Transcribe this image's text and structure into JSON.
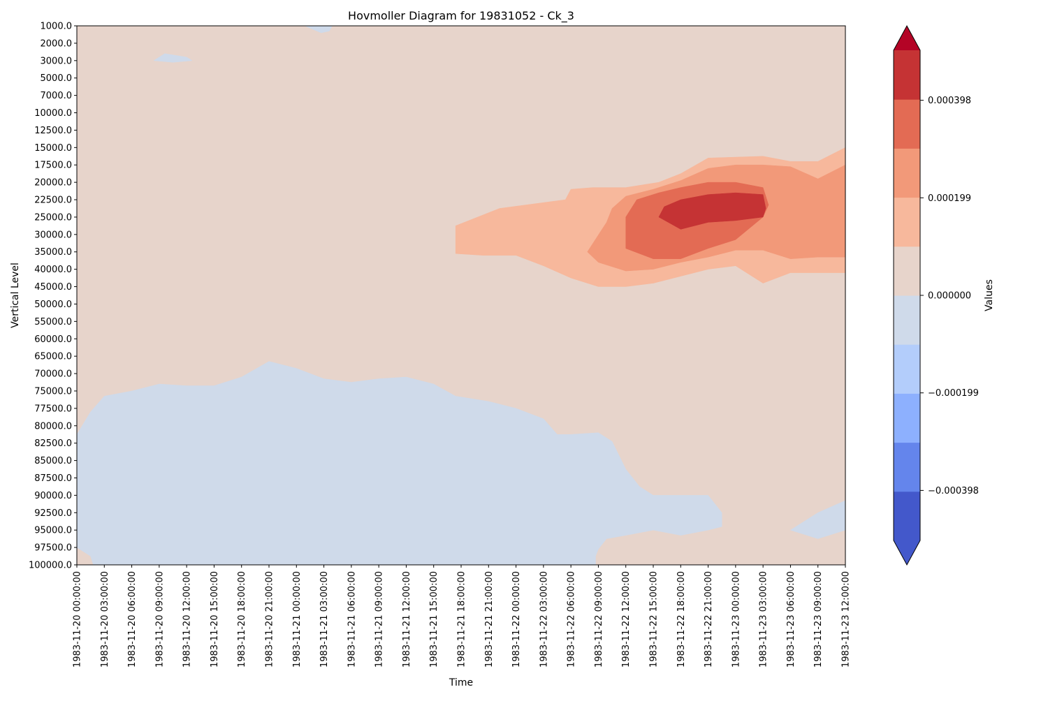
{
  "chart_data": {
    "type": "heatmap",
    "subtype": "filled-contour",
    "title": "Hovmoller Diagram for 19831052 - Ck_3",
    "xlabel": "Time",
    "ylabel": "Vertical Level",
    "x": [
      "1983-11-20 00:00:00",
      "1983-11-20 03:00:00",
      "1983-11-20 06:00:00",
      "1983-11-20 09:00:00",
      "1983-11-20 12:00:00",
      "1983-11-20 15:00:00",
      "1983-11-20 18:00:00",
      "1983-11-20 21:00:00",
      "1983-11-21 00:00:00",
      "1983-11-21 03:00:00",
      "1983-11-21 06:00:00",
      "1983-11-21 09:00:00",
      "1983-11-21 12:00:00",
      "1983-11-21 15:00:00",
      "1983-11-21 18:00:00",
      "1983-11-21 21:00:00",
      "1983-11-22 00:00:00",
      "1983-11-22 03:00:00",
      "1983-11-22 06:00:00",
      "1983-11-22 09:00:00",
      "1983-11-22 12:00:00",
      "1983-11-22 15:00:00",
      "1983-11-22 18:00:00",
      "1983-11-22 21:00:00",
      "1983-11-23 00:00:00",
      "1983-11-23 03:00:00",
      "1983-11-23 06:00:00",
      "1983-11-23 09:00:00",
      "1983-11-23 12:00:00"
    ],
    "y": [
      "1000.0",
      "2000.0",
      "3000.0",
      "5000.0",
      "7000.0",
      "10000.0",
      "12500.0",
      "15000.0",
      "17500.0",
      "20000.0",
      "22500.0",
      "25000.0",
      "30000.0",
      "35000.0",
      "40000.0",
      "45000.0",
      "50000.0",
      "55000.0",
      "60000.0",
      "65000.0",
      "70000.0",
      "75000.0",
      "77500.0",
      "80000.0",
      "82500.0",
      "85000.0",
      "87500.0",
      "90000.0",
      "92500.0",
      "95000.0",
      "97500.0",
      "100000.0"
    ],
    "y_inverted": true,
    "colormap": "coolwarm",
    "colorbar": {
      "label": "Values",
      "extend": "both",
      "range": [
        -0.0005,
        0.0005
      ],
      "levels": [
        -0.0005,
        -0.0004,
        -0.0003,
        -0.0002,
        -0.0001,
        0,
        0.0001,
        0.0002,
        0.0003,
        0.0004,
        0.0005
      ],
      "ticks": [
        {
          "value": 0.000398,
          "label": "0.000398"
        },
        {
          "value": 0.000199,
          "label": "0.000199"
        },
        {
          "value": 0,
          "label": "0.000000"
        },
        {
          "value": -0.000199,
          "label": "−0.000199"
        },
        {
          "value": -0.000398,
          "label": "−0.000398"
        }
      ],
      "colors": [
        "#4358cb",
        "#6485ec",
        "#8db0fe",
        "#b3cdfb",
        "#cfdaea",
        "#e7d4cb",
        "#f7b89c",
        "#f29979",
        "#e36b54",
        "#c53334",
        "#b40426"
      ]
    },
    "regions": [
      {
        "level": "0.0001 to 0.0002",
        "color": "#f7b89c",
        "desc": "upper positive envelope",
        "points": [
          [
            13.8,
            11.5
          ],
          [
            15.4,
            10.5
          ],
          [
            17.8,
            10.0
          ],
          [
            18,
            9.4
          ],
          [
            18.8,
            9.3
          ],
          [
            20,
            9.3
          ],
          [
            21.2,
            9.0
          ],
          [
            22,
            8.5
          ],
          [
            23,
            7.6
          ],
          [
            25,
            7.5
          ],
          [
            26,
            7.8
          ],
          [
            27,
            7.8
          ],
          [
            28,
            7.0
          ],
          [
            28,
            14.2
          ],
          [
            26,
            14.2
          ],
          [
            25,
            14.8
          ],
          [
            24,
            13.8
          ],
          [
            23,
            14.0
          ],
          [
            22,
            14.4
          ],
          [
            21,
            14.8
          ],
          [
            20,
            15.0
          ],
          [
            19,
            15.0
          ],
          [
            18,
            14.5
          ],
          [
            17,
            13.8
          ],
          [
            16,
            13.2
          ],
          [
            14.8,
            13.2
          ],
          [
            13.8,
            13.1
          ]
        ]
      },
      {
        "level": "0.0002 to 0.0003",
        "color": "#f29979",
        "desc": "inner positive contour",
        "points": [
          [
            18.6,
            13.0
          ],
          [
            19.3,
            11.3
          ],
          [
            19.5,
            10.5
          ],
          [
            20,
            9.8
          ],
          [
            21,
            9.4
          ],
          [
            22,
            8.9
          ],
          [
            23,
            8.2
          ],
          [
            24,
            8.0
          ],
          [
            25,
            8.0
          ],
          [
            26,
            8.1
          ],
          [
            27,
            8.8
          ],
          [
            28,
            8.0
          ],
          [
            28,
            13.3
          ],
          [
            27,
            13.3
          ],
          [
            26,
            13.4
          ],
          [
            25,
            12.9
          ],
          [
            24,
            12.9
          ],
          [
            23,
            13.3
          ],
          [
            22,
            13.6
          ],
          [
            21,
            14.0
          ],
          [
            20,
            14.1
          ],
          [
            19,
            13.6
          ]
        ]
      },
      {
        "level": "0.0003 to 0.0004",
        "color": "#e36b54",
        "desc": "core contour",
        "points": [
          [
            20,
            11.0
          ],
          [
            20.4,
            10.0
          ],
          [
            21.2,
            9.6
          ],
          [
            22,
            9.3
          ],
          [
            23,
            9.0
          ],
          [
            24,
            9.0
          ],
          [
            25,
            9.3
          ],
          [
            25.2,
            10.3
          ],
          [
            25,
            11.0
          ],
          [
            24,
            12.3
          ],
          [
            23,
            12.8
          ],
          [
            22,
            13.4
          ],
          [
            21,
            13.4
          ],
          [
            20,
            12.8
          ]
        ]
      },
      {
        "level": "0.0004 to 0.0005",
        "color": "#c53334",
        "desc": "maximum core",
        "points": [
          [
            21.2,
            11.0
          ],
          [
            21.4,
            10.4
          ],
          [
            22,
            10.0
          ],
          [
            23,
            9.7
          ],
          [
            24,
            9.6
          ],
          [
            25,
            9.7
          ],
          [
            25.1,
            10.5
          ],
          [
            25,
            11.0
          ],
          [
            24,
            11.2
          ],
          [
            23,
            11.3
          ],
          [
            22,
            11.7
          ]
        ]
      },
      {
        "level": "-0.0001 to 0",
        "color": "#cfdaea",
        "desc": "lower negative region",
        "points": [
          [
            0,
            23.5
          ],
          [
            0.5,
            22.2
          ],
          [
            1,
            21.3
          ],
          [
            2,
            21.0
          ],
          [
            3,
            20.6
          ],
          [
            4,
            20.7
          ],
          [
            5,
            20.7
          ],
          [
            6,
            20.2
          ],
          [
            7,
            19.3
          ],
          [
            8,
            19.7
          ],
          [
            9,
            20.3
          ],
          [
            10,
            20.5
          ],
          [
            11,
            20.3
          ],
          [
            12,
            20.2
          ],
          [
            13,
            20.6
          ],
          [
            13.8,
            21.3
          ],
          [
            15,
            21.6
          ],
          [
            16,
            22.0
          ],
          [
            17,
            22.6
          ],
          [
            17.5,
            23.5
          ],
          [
            18,
            23.5
          ],
          [
            19,
            23.4
          ],
          [
            19.5,
            23.9
          ],
          [
            20,
            25.5
          ],
          [
            20.5,
            26.5
          ],
          [
            21,
            27.0
          ],
          [
            22,
            27.0
          ],
          [
            23,
            27.0
          ],
          [
            23.5,
            28.0
          ],
          [
            23.5,
            28.8
          ],
          [
            23,
            29.0
          ],
          [
            22,
            29.3
          ],
          [
            21,
            29.0
          ],
          [
            20,
            29.3
          ],
          [
            19.3,
            29.5
          ],
          [
            19,
            30.1
          ],
          [
            18.9,
            30.5
          ],
          [
            18.9,
            31.0
          ],
          [
            0.6,
            31.0
          ],
          [
            0.5,
            30.5
          ],
          [
            0,
            30.0
          ]
        ]
      },
      {
        "level": "-0.0001 to 0",
        "color": "#cfdaea",
        "desc": "lower right negative patch",
        "points": [
          [
            26,
            29.0
          ],
          [
            26.5,
            28.5
          ],
          [
            27,
            28.0
          ],
          [
            28,
            27.3
          ],
          [
            28,
            29.0
          ],
          [
            27,
            29.5
          ]
        ]
      },
      {
        "level": "-0.0001 to 0",
        "color": "#cfdaea",
        "desc": "upper small negative patch",
        "points": [
          [
            2.8,
            2.0
          ],
          [
            3.2,
            1.6
          ],
          [
            4,
            1.8
          ],
          [
            4.2,
            2.0
          ],
          [
            3.5,
            2.1
          ]
        ]
      },
      {
        "level": "-0.0001 to 0",
        "color": "#cfdaea",
        "desc": "top edge negative patch",
        "points": [
          [
            8.3,
            0.0
          ],
          [
            9.3,
            0.0
          ],
          [
            9.2,
            0.3
          ],
          [
            8.9,
            0.4
          ],
          [
            8.6,
            0.2
          ]
        ]
      }
    ]
  }
}
